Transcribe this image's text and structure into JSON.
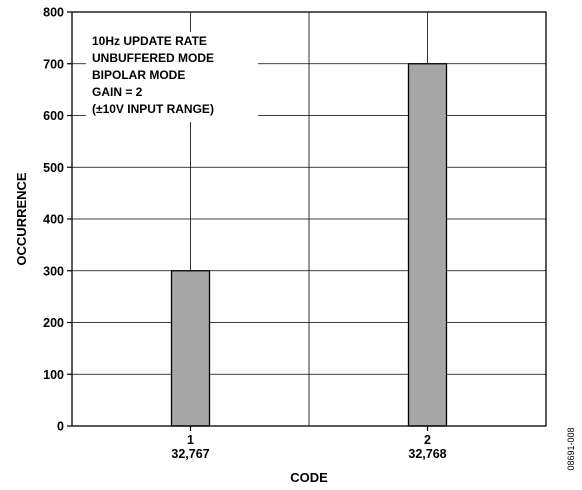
{
  "chart_data": {
    "type": "bar",
    "categories": [
      {
        "label": "1",
        "sublabel": "32,767"
      },
      {
        "label": "2",
        "sublabel": "32,768"
      }
    ],
    "values": [
      300,
      700
    ],
    "xlabel": "CODE",
    "ylabel": "OCCURRENCE",
    "ylim": [
      0,
      800
    ],
    "yticks": [
      0,
      100,
      200,
      300,
      400,
      500,
      600,
      700,
      800
    ],
    "grid": true,
    "bar_color": "#a6a6a6",
    "annotation": [
      "10Hz UPDATE RATE",
      "UNBUFFERED MODE",
      "BIPOLAR MODE",
      "GAIN = 2",
      "(±10V INPUT RANGE)"
    ],
    "figure_id": "08691-008"
  }
}
